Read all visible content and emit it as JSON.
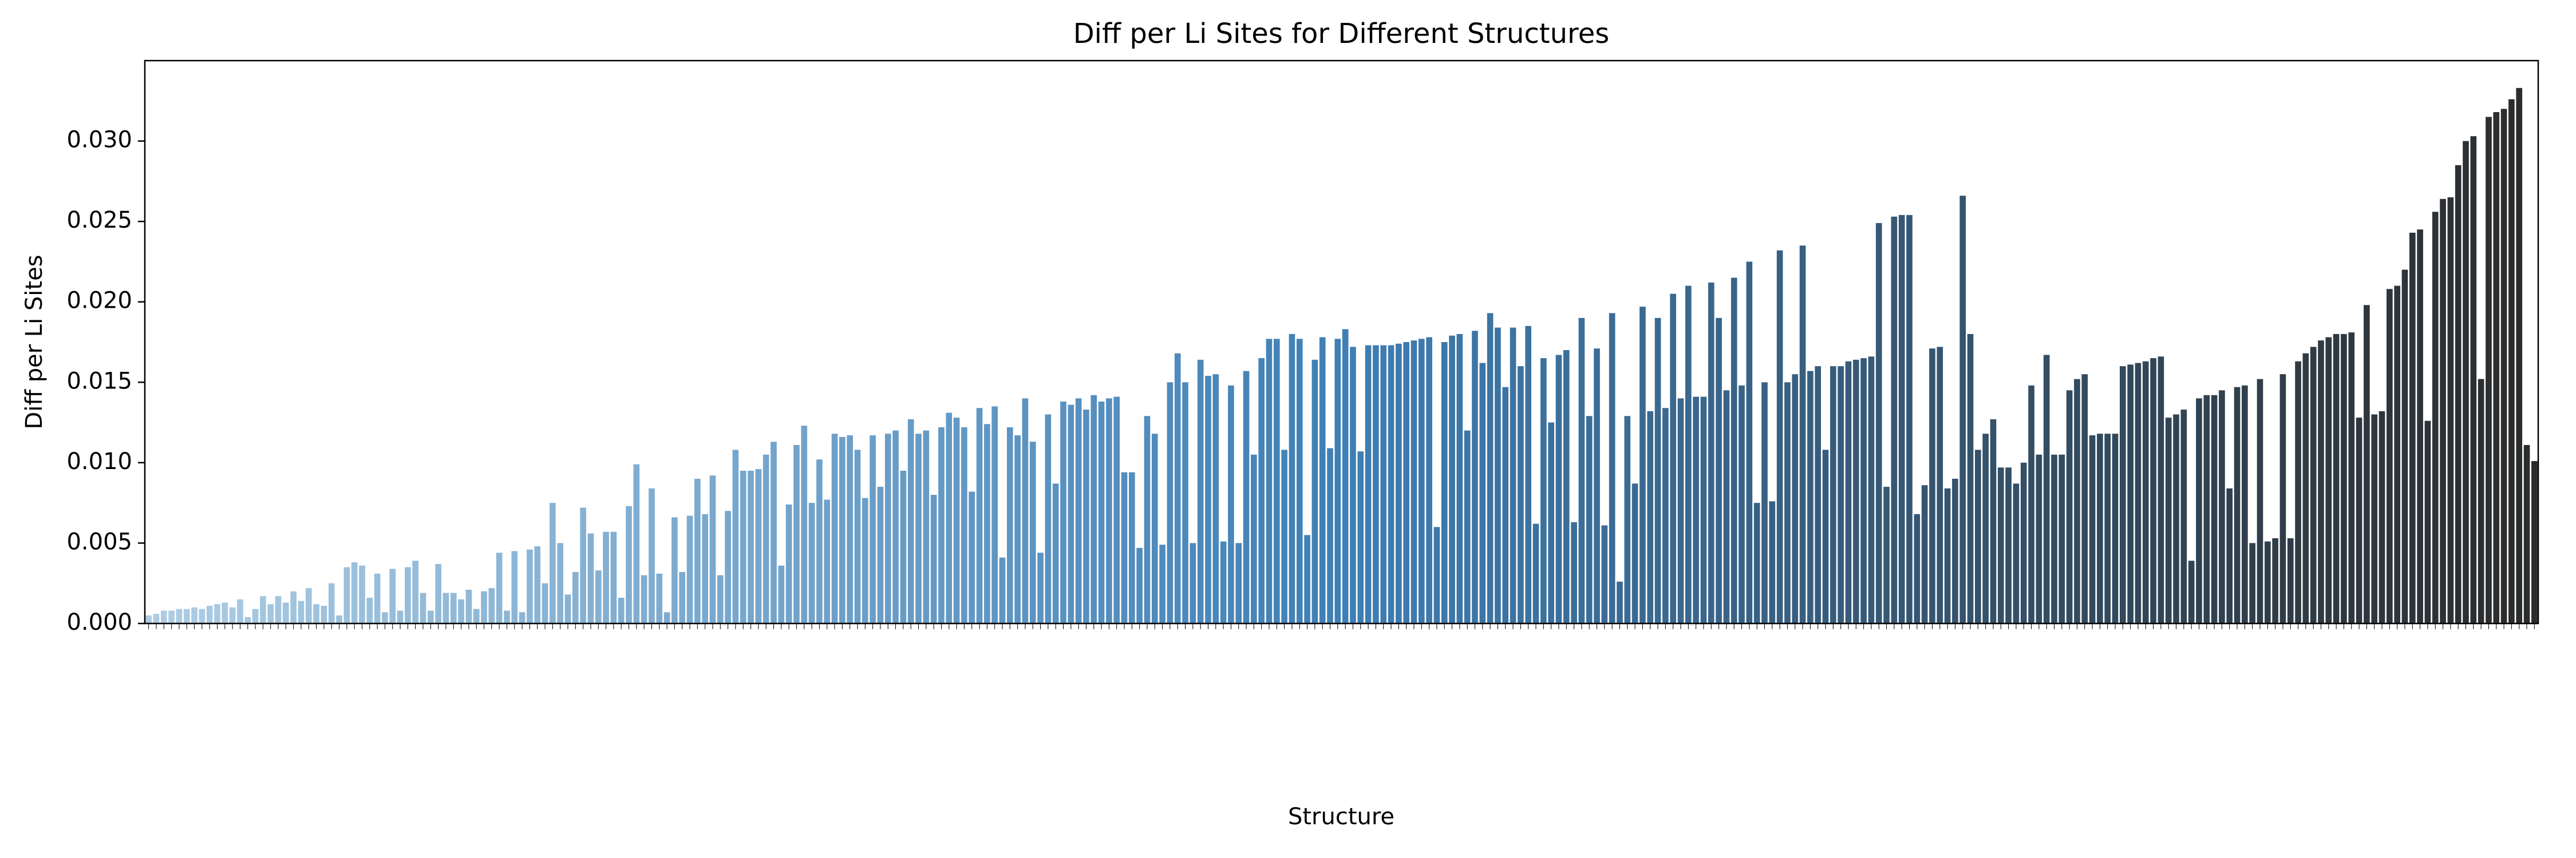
{
  "chart_data": {
    "type": "bar",
    "title": "Diff per Li Sites for Different Structures",
    "xlabel": "Structure",
    "ylabel": "Diff per Li Sites",
    "palette": [
      "#aecde4",
      "#3f7fb5",
      "#2b2b2b"
    ],
    "ylim": [
      0,
      0.035
    ],
    "yticks": [
      {
        "value": 0,
        "label": "0.000"
      },
      {
        "value": 0.005,
        "label": "0.005"
      },
      {
        "value": 0.01,
        "label": "0.010"
      },
      {
        "value": 0.015,
        "label": "0.015"
      },
      {
        "value": 0.02,
        "label": "0.020"
      },
      {
        "value": 0.025,
        "label": "0.025"
      },
      {
        "value": 0.03,
        "label": "0.030"
      }
    ],
    "values": [
      0.0005,
      0.0006,
      0.0008,
      0.0008,
      0.0009,
      0.0009,
      0.001,
      0.0009,
      0.0011,
      0.0012,
      0.0013,
      0.001,
      0.0015,
      0.0004,
      0.0009,
      0.0017,
      0.0012,
      0.0017,
      0.0013,
      0.002,
      0.0014,
      0.0022,
      0.0012,
      0.0011,
      0.0025,
      0.0005,
      0.0035,
      0.0038,
      0.0036,
      0.0016,
      0.0031,
      0.0007,
      0.0034,
      0.0008,
      0.0035,
      0.0039,
      0.0019,
      0.0008,
      0.0037,
      0.0019,
      0.0019,
      0.0015,
      0.0021,
      0.0009,
      0.002,
      0.0022,
      0.0044,
      0.0008,
      0.0045,
      0.0007,
      0.0046,
      0.0048,
      0.0025,
      0.0075,
      0.005,
      0.0018,
      0.0032,
      0.0072,
      0.0056,
      0.0033,
      0.0057,
      0.0057,
      0.0016,
      0.0073,
      0.0099,
      0.003,
      0.0084,
      0.0031,
      0.0007,
      0.0066,
      0.0032,
      0.0067,
      0.009,
      0.0068,
      0.0092,
      0.003,
      0.007,
      0.0108,
      0.0095,
      0.0095,
      0.0096,
      0.0105,
      0.0113,
      0.0036,
      0.0074,
      0.0111,
      0.0123,
      0.0075,
      0.0102,
      0.0077,
      0.0118,
      0.0116,
      0.0117,
      0.0108,
      0.0078,
      0.0117,
      0.0085,
      0.0118,
      0.012,
      0.0095,
      0.0127,
      0.0118,
      0.012,
      0.008,
      0.0122,
      0.0131,
      0.0128,
      0.0122,
      0.0082,
      0.0134,
      0.0124,
      0.0135,
      0.0041,
      0.0122,
      0.0117,
      0.014,
      0.0113,
      0.0044,
      0.013,
      0.0087,
      0.0138,
      0.0136,
      0.014,
      0.0133,
      0.0142,
      0.0138,
      0.014,
      0.0141,
      0.0094,
      0.0094,
      0.0047,
      0.0129,
      0.0118,
      0.0049,
      0.015,
      0.0168,
      0.015,
      0.005,
      0.0164,
      0.0154,
      0.0155,
      0.0051,
      0.0148,
      0.005,
      0.0157,
      0.0105,
      0.0165,
      0.0177,
      0.0177,
      0.0108,
      0.018,
      0.0177,
      0.0055,
      0.0164,
      0.0178,
      0.0109,
      0.0177,
      0.0183,
      0.0172,
      0.0107,
      0.0173,
      0.0173,
      0.0173,
      0.0173,
      0.0174,
      0.0175,
      0.0176,
      0.0177,
      0.0178,
      0.006,
      0.0175,
      0.0179,
      0.018,
      0.012,
      0.0182,
      0.0162,
      0.0193,
      0.0184,
      0.0147,
      0.0184,
      0.016,
      0.0185,
      0.0062,
      0.0165,
      0.0125,
      0.0167,
      0.017,
      0.0063,
      0.019,
      0.0129,
      0.0171,
      0.0061,
      0.0193,
      0.0026,
      0.0129,
      0.0087,
      0.0197,
      0.0132,
      0.019,
      0.0134,
      0.0205,
      0.014,
      0.021,
      0.0141,
      0.0141,
      0.0212,
      0.019,
      0.0145,
      0.0215,
      0.0148,
      0.0225,
      0.0075,
      0.015,
      0.0076,
      0.0232,
      0.015,
      0.0155,
      0.0235,
      0.0157,
      0.016,
      0.0108,
      0.016,
      0.016,
      0.0163,
      0.0164,
      0.0165,
      0.0166,
      0.0249,
      0.0085,
      0.0253,
      0.0254,
      0.0254,
      0.0068,
      0.0086,
      0.0171,
      0.0172,
      0.0084,
      0.009,
      0.0266,
      0.018,
      0.0108,
      0.0118,
      0.0127,
      0.0097,
      0.0097,
      0.0087,
      0.01,
      0.0148,
      0.0105,
      0.0167,
      0.0105,
      0.0105,
      0.0145,
      0.0152,
      0.0155,
      0.0117,
      0.0118,
      0.0118,
      0.0118,
      0.016,
      0.0161,
      0.0162,
      0.0163,
      0.0165,
      0.0166,
      0.0128,
      0.013,
      0.0133,
      0.0039,
      0.014,
      0.0142,
      0.0142,
      0.0145,
      0.0084,
      0.0147,
      0.0148,
      0.005,
      0.0152,
      0.0051,
      0.0053,
      0.0155,
      0.0053,
      0.0163,
      0.0168,
      0.0172,
      0.0176,
      0.0178,
      0.018,
      0.018,
      0.0181,
      0.0128,
      0.0198,
      0.013,
      0.0132,
      0.0208,
      0.021,
      0.022,
      0.0243,
      0.0245,
      0.0126,
      0.0256,
      0.0264,
      0.0265,
      0.0285,
      0.03,
      0.0303,
      0.0152,
      0.0315,
      0.0318,
      0.032,
      0.0326,
      0.0333,
      0.0111,
      0.0101
    ]
  }
}
